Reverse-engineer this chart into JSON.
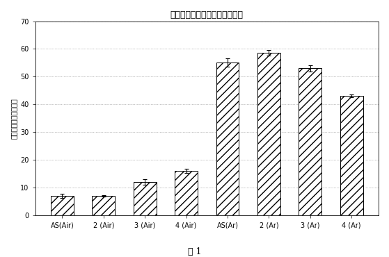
{
  "title": "亜酸化窒素ヘッドスペース解析",
  "ylabel": "ピークエリア（任意）",
  "caption": "図 1",
  "categories": [
    "AS(Air)",
    "2 (Air)",
    "3 (Air)",
    "4 (Air)",
    "AS(Ar)",
    "2 (Ar)",
    "3 (Ar)",
    "4 (Ar)"
  ],
  "values": [
    7.0,
    7.0,
    12.0,
    16.0,
    55.0,
    58.5,
    53.0,
    43.0
  ],
  "errors": [
    0.8,
    0.3,
    1.0,
    0.8,
    1.5,
    1.0,
    1.2,
    0.5
  ],
  "ylim": [
    0,
    70
  ],
  "yticks": [
    0,
    10,
    20,
    30,
    40,
    50,
    60,
    70
  ],
  "bar_color": "#ffffff",
  "bar_edgecolor": "#000000",
  "hatch": "///",
  "figsize": [
    5.59,
    3.7
  ],
  "dpi": 100,
  "title_fontsize": 9,
  "ylabel_fontsize": 7,
  "tick_fontsize": 7,
  "caption_fontsize": 9,
  "background_color": "#ffffff"
}
